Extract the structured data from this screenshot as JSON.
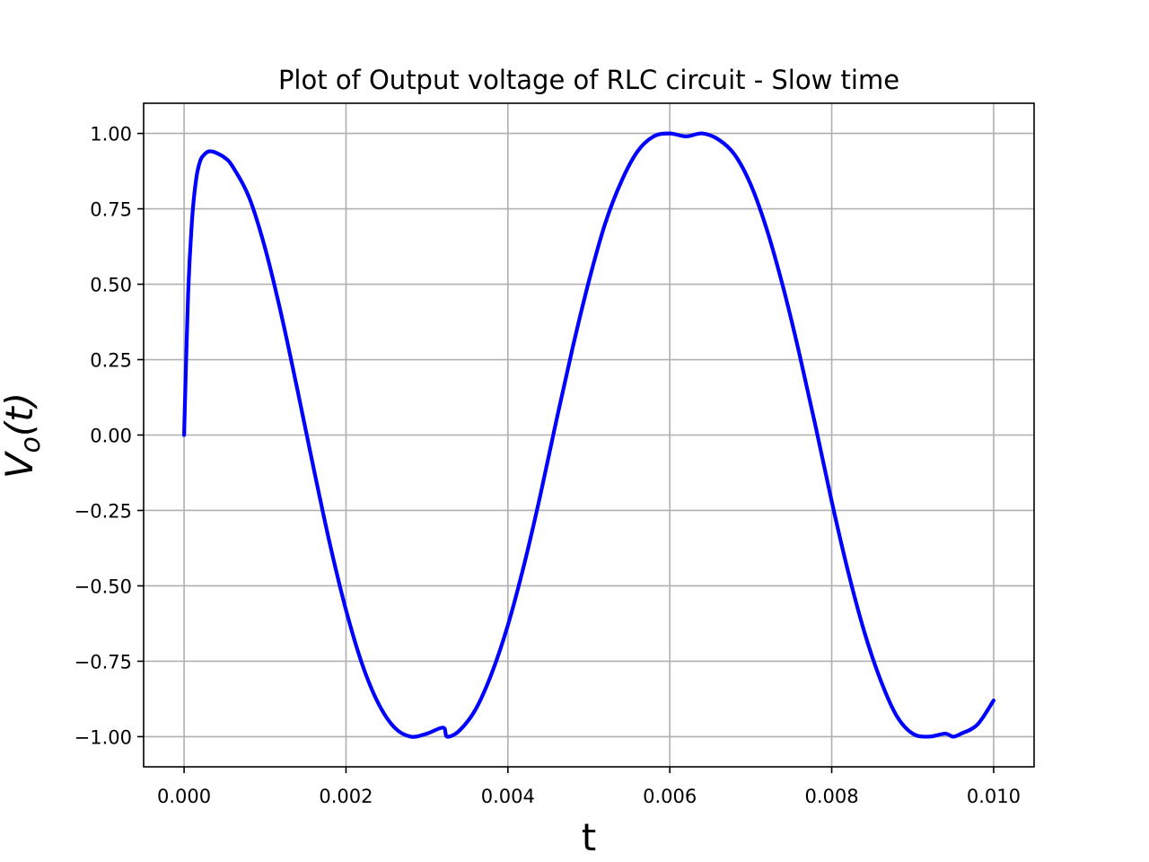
{
  "chart_data": {
    "type": "line",
    "title": "Plot of Output voltage of RLC circuit - Slow time",
    "xlabel": "t",
    "ylabel": {
      "main": "V",
      "sub": "o",
      "arg": "(t)"
    },
    "xlim": [
      -0.0005,
      0.0105
    ],
    "ylim": [
      -1.1,
      1.1
    ],
    "grid": true,
    "x_ticks": [
      0.0,
      0.002,
      0.004,
      0.006,
      0.008,
      0.01
    ],
    "x_tick_labels": [
      "0.000",
      "0.002",
      "0.004",
      "0.006",
      "0.008",
      "0.010"
    ],
    "y_ticks": [
      1.0,
      0.75,
      0.5,
      0.25,
      0.0,
      -0.25,
      -0.5,
      -0.75,
      -1.0
    ],
    "y_tick_labels": [
      "1.00",
      "0.75",
      "0.50",
      "0.25",
      "0.00",
      "−0.25",
      "−0.50",
      "−0.75",
      "−1.00"
    ],
    "series": [
      {
        "color": "#0000ff",
        "x": [
          0.0,
          5e-05,
          0.0001,
          0.00015,
          0.0002,
          0.00025,
          0.0003,
          0.00035,
          0.0004,
          0.0005,
          0.0006,
          0.0008,
          0.001,
          0.0012,
          0.0014,
          0.0016,
          0.0018,
          0.002,
          0.0022,
          0.0024,
          0.0026,
          0.0028,
          0.003,
          0.0032,
          0.00325,
          0.0034,
          0.0036,
          0.0038,
          0.004,
          0.0042,
          0.0044,
          0.0046,
          0.0048,
          0.005,
          0.0052,
          0.0054,
          0.0056,
          0.0058,
          0.006,
          0.0062,
          0.0064,
          0.0066,
          0.0068,
          0.007,
          0.0072,
          0.0074,
          0.0076,
          0.0078,
          0.008,
          0.0082,
          0.0084,
          0.0086,
          0.0088,
          0.009,
          0.0092,
          0.0094,
          0.0095,
          0.0096,
          0.0098,
          0.01
        ],
        "y": [
          0.0,
          0.47,
          0.72,
          0.85,
          0.91,
          0.93,
          0.94,
          0.94,
          0.935,
          0.92,
          0.89,
          0.79,
          0.62,
          0.4,
          0.15,
          -0.11,
          -0.36,
          -0.58,
          -0.76,
          -0.89,
          -0.97,
          -1.0,
          -0.99,
          -0.97,
          -1.0,
          -0.98,
          -0.91,
          -0.79,
          -0.63,
          -0.43,
          -0.2,
          0.05,
          0.29,
          0.51,
          0.7,
          0.84,
          0.94,
          0.99,
          1.0,
          0.99,
          1.0,
          0.98,
          0.93,
          0.83,
          0.68,
          0.49,
          0.27,
          0.03,
          -0.22,
          -0.45,
          -0.65,
          -0.81,
          -0.93,
          -0.99,
          -1.0,
          -0.99,
          -1.0,
          -0.99,
          -0.96,
          -0.88
        ]
      }
    ]
  }
}
